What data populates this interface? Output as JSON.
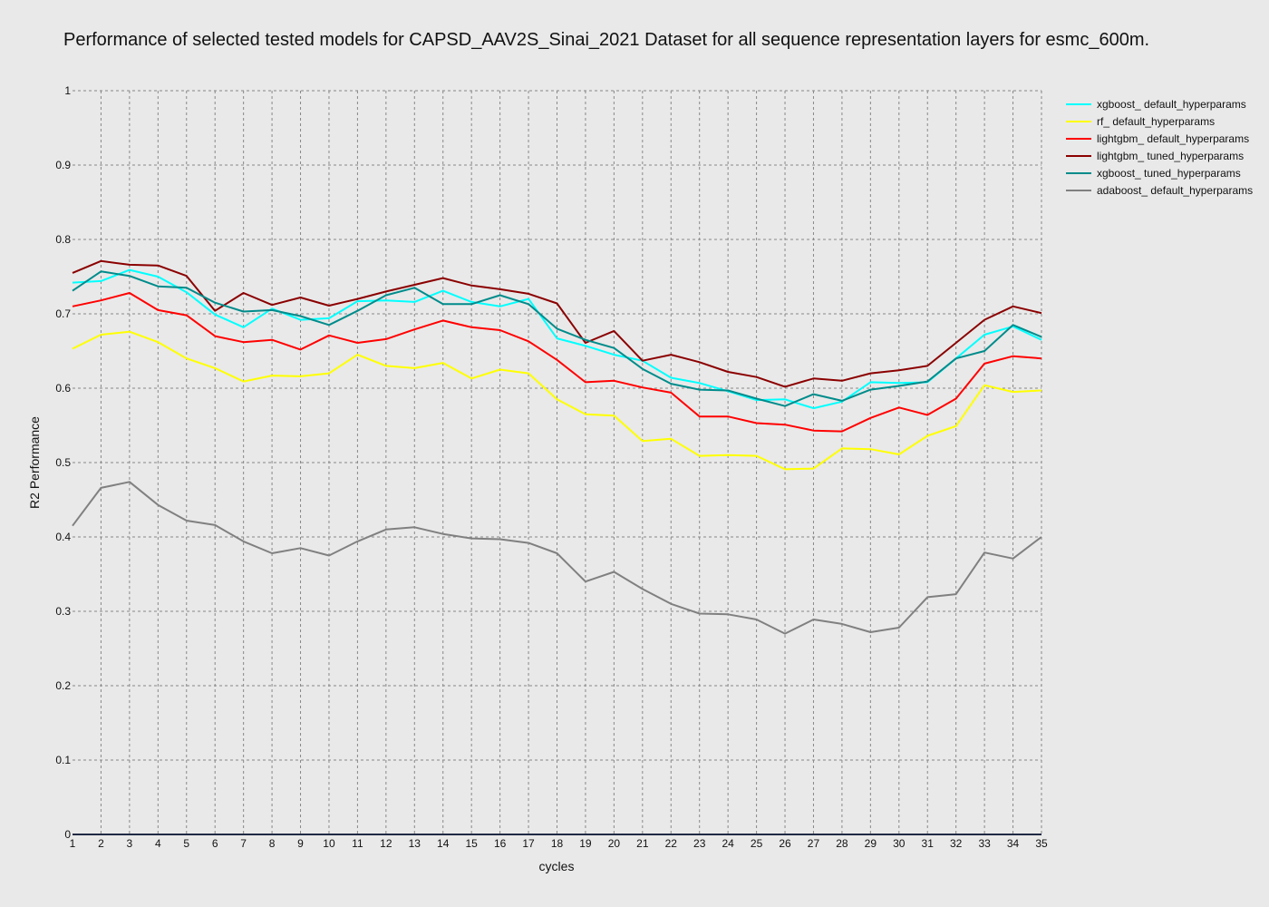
{
  "chart_data": {
    "type": "line",
    "title": "Performance of selected tested models for CAPSD_AAV2S_Sinai_2021 Dataset for all sequence representation layers for esmc_600m.",
    "xlabel": "cycles",
    "ylabel": "R2 Performance",
    "xlim": [
      1,
      35
    ],
    "ylim": [
      0,
      1
    ],
    "grid": true,
    "legend_position": "top-right",
    "x": [
      1,
      2,
      3,
      4,
      5,
      6,
      7,
      8,
      9,
      10,
      11,
      12,
      13,
      14,
      15,
      16,
      17,
      18,
      19,
      20,
      21,
      22,
      23,
      24,
      25,
      26,
      27,
      28,
      29,
      30,
      31,
      32,
      33,
      34,
      35
    ],
    "y_ticks": [
      "0",
      "0.1",
      "0.2",
      "0.3",
      "0.4",
      "0.5",
      "0.6",
      "0.7",
      "0.8",
      "0.9",
      "1"
    ],
    "y_tick_values": [
      0,
      0.1,
      0.2,
      0.3,
      0.4,
      0.5,
      0.6,
      0.7,
      0.8,
      0.9,
      1
    ],
    "series": [
      {
        "name": "xgboost_ default_hyperparams",
        "color": "#00ffff",
        "values": [
          0.742,
          0.744,
          0.759,
          0.75,
          0.729,
          0.699,
          0.682,
          0.707,
          0.692,
          0.694,
          0.717,
          0.718,
          0.716,
          0.731,
          0.716,
          0.71,
          0.72,
          0.667,
          0.657,
          0.645,
          0.637,
          0.614,
          0.607,
          0.596,
          0.584,
          0.585,
          0.573,
          0.582,
          0.608,
          0.607,
          0.608,
          0.64,
          0.672,
          0.683,
          0.665
        ]
      },
      {
        "name": "rf_ default_hyperparams",
        "color": "#ffff00",
        "values": [
          0.653,
          0.672,
          0.676,
          0.662,
          0.64,
          0.627,
          0.609,
          0.617,
          0.616,
          0.62,
          0.645,
          0.63,
          0.627,
          0.634,
          0.613,
          0.625,
          0.62,
          0.585,
          0.565,
          0.563,
          0.529,
          0.532,
          0.509,
          0.51,
          0.509,
          0.491,
          0.492,
          0.519,
          0.518,
          0.511,
          0.536,
          0.549,
          0.604,
          0.595,
          0.597
        ]
      },
      {
        "name": "lightgbm_ default_hyperparams",
        "color": "#ff0000",
        "values": [
          0.71,
          0.718,
          0.728,
          0.705,
          0.698,
          0.67,
          0.662,
          0.665,
          0.652,
          0.671,
          0.661,
          0.666,
          0.679,
          0.691,
          0.682,
          0.678,
          0.663,
          0.638,
          0.608,
          0.61,
          0.601,
          0.594,
          0.562,
          0.562,
          0.553,
          0.551,
          0.543,
          0.542,
          0.56,
          0.574,
          0.564,
          0.586,
          0.633,
          0.643,
          0.64
        ]
      },
      {
        "name": "lightgbm_ tuned_hyperparams",
        "color": "#8b0000",
        "values": [
          0.755,
          0.771,
          0.766,
          0.765,
          0.751,
          0.704,
          0.728,
          0.712,
          0.722,
          0.711,
          0.72,
          0.73,
          0.739,
          0.748,
          0.738,
          0.733,
          0.727,
          0.714,
          0.661,
          0.677,
          0.637,
          0.645,
          0.635,
          0.622,
          0.615,
          0.602,
          0.613,
          0.61,
          0.62,
          0.624,
          0.63,
          0.661,
          0.692,
          0.71,
          0.701
        ]
      },
      {
        "name": "xgboost_ tuned_hyperparams",
        "color": "#008b8b",
        "values": [
          0.731,
          0.757,
          0.751,
          0.737,
          0.735,
          0.715,
          0.703,
          0.705,
          0.697,
          0.685,
          0.704,
          0.725,
          0.735,
          0.713,
          0.713,
          0.725,
          0.713,
          0.68,
          0.665,
          0.654,
          0.626,
          0.606,
          0.598,
          0.597,
          0.586,
          0.576,
          0.592,
          0.583,
          0.598,
          0.603,
          0.609,
          0.64,
          0.65,
          0.685,
          0.669
        ]
      },
      {
        "name": "adaboost_ default_hyperparams",
        "color": "#808080",
        "values": [
          0.415,
          0.466,
          0.474,
          0.443,
          0.422,
          0.416,
          0.394,
          0.378,
          0.385,
          0.375,
          0.394,
          0.41,
          0.413,
          0.404,
          0.398,
          0.397,
          0.392,
          0.378,
          0.34,
          0.353,
          0.33,
          0.31,
          0.297,
          0.296,
          0.289,
          0.27,
          0.289,
          0.283,
          0.272,
          0.278,
          0.319,
          0.323,
          0.379,
          0.371,
          0.4
        ]
      }
    ]
  }
}
